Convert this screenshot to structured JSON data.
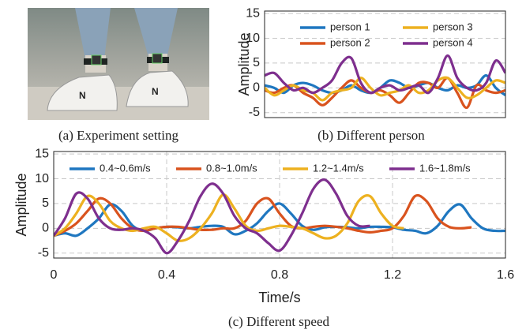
{
  "captions": [
    "(a) Experiment setting",
    "(b) Different person",
    "(c) Different speed"
  ],
  "chart_data": [
    {
      "type": "line",
      "ylabel": "Amplitude",
      "grid": true,
      "xlim": [
        0,
        1
      ],
      "ylim": [
        -6,
        15.5
      ],
      "yticks": [
        -5,
        0,
        5,
        10,
        15
      ],
      "x": [
        0,
        0.04,
        0.08,
        0.12,
        0.16,
        0.2,
        0.24,
        0.28,
        0.32,
        0.36,
        0.4,
        0.44,
        0.48,
        0.52,
        0.56,
        0.6,
        0.64,
        0.68,
        0.72,
        0.76,
        0.8,
        0.84,
        0.88,
        0.92,
        0.96,
        1
      ],
      "series": [
        {
          "name": "person 1",
          "color": "#1f77c0",
          "values": [
            0.5,
            0,
            -1,
            0.5,
            1,
            0.5,
            -0.5,
            -1,
            -0.5,
            0.5,
            -0.5,
            -1,
            0,
            1.5,
            1,
            0,
            0.5,
            1,
            0,
            -0.5,
            0.5,
            0,
            0.5,
            2.5,
            0,
            -1.5
          ]
        },
        {
          "name": "person 2",
          "color": "#d9531e",
          "values": [
            -0.5,
            -1,
            0,
            0.5,
            -1,
            -2,
            -3.5,
            -2,
            0,
            1.5,
            0,
            -1,
            -0.5,
            -1.5,
            -3,
            -1,
            1,
            1,
            0,
            2,
            -1,
            -4,
            0.5,
            -0.5,
            -1,
            -0.5
          ]
        },
        {
          "name": "person 3",
          "color": "#edb120",
          "values": [
            0,
            -1.5,
            -0.5,
            0.5,
            -0.5,
            -1,
            -2.5,
            -1,
            -0.5,
            0,
            2,
            0,
            -1.5,
            -1,
            -0.5,
            0.5,
            -1,
            -0.5,
            1.5,
            2,
            0,
            -2,
            -1.5,
            0,
            1.5,
            1
          ]
        },
        {
          "name": "person 4",
          "color": "#7e2f8e",
          "values": [
            2.5,
            3,
            1,
            -0.5,
            0,
            -1,
            0,
            1.5,
            5,
            6,
            1,
            -1,
            0,
            0.5,
            -0.5,
            0,
            0.5,
            -1,
            2,
            6.5,
            2,
            0,
            -0.5,
            1,
            5.5,
            3
          ]
        }
      ]
    },
    {
      "type": "line",
      "xlabel": "Time/s",
      "ylabel": "Amplitude",
      "grid": true,
      "xlim": [
        0,
        1.6
      ],
      "xticks": [
        0,
        0.4,
        0.8,
        1.2,
        1.6
      ],
      "ylim": [
        -6,
        15.5
      ],
      "yticks": [
        -5,
        0,
        5,
        10,
        15
      ],
      "series": [
        {
          "name": "0.4~0.6m/s",
          "color": "#1f77c0",
          "x": [
            0,
            0.04,
            0.08,
            0.12,
            0.16,
            0.2,
            0.24,
            0.28,
            0.32,
            0.36,
            0.4,
            0.44,
            0.48,
            0.52,
            0.56,
            0.6,
            0.64,
            0.68,
            0.72,
            0.76,
            0.8,
            0.84,
            0.88,
            0.92,
            0.96,
            1,
            1.04,
            1.08,
            1.12,
            1.16,
            1.2,
            1.24,
            1.28,
            1.32,
            1.36,
            1.4,
            1.44,
            1.48,
            1.52,
            1.56,
            1.6
          ],
          "values": [
            -1.5,
            -1,
            -1.5,
            0,
            2,
            4.8,
            3.5,
            0.5,
            -0.5,
            0,
            0.3,
            0.2,
            0,
            0.3,
            0.5,
            0.3,
            -1.2,
            -0.5,
            1,
            3.5,
            5,
            3,
            0.5,
            -0.3,
            0.2,
            0.3,
            0.2,
            0,
            0.3,
            0.3,
            0.2,
            -0.3,
            -0.5,
            -1,
            0.5,
            3.5,
            4.8,
            2,
            0,
            -0.5,
            -0.5
          ]
        },
        {
          "name": "0.8~1.0m/s",
          "color": "#d9531e",
          "x": [
            0,
            0.04,
            0.08,
            0.12,
            0.16,
            0.2,
            0.24,
            0.28,
            0.32,
            0.36,
            0.4,
            0.44,
            0.48,
            0.52,
            0.56,
            0.6,
            0.64,
            0.68,
            0.72,
            0.76,
            0.8,
            0.84,
            0.88,
            0.92,
            0.96,
            1,
            1.04,
            1.08,
            1.12,
            1.16,
            1.2,
            1.24,
            1.28,
            1.32,
            1.36,
            1.4,
            1.44,
            1.48
          ],
          "values": [
            -1.5,
            -0.5,
            1,
            3.5,
            6,
            5,
            2,
            0,
            -0.5,
            0,
            0.3,
            0.3,
            0,
            -0.3,
            -0.3,
            0,
            0,
            1.5,
            5,
            6,
            3,
            0.5,
            0,
            0.3,
            0.5,
            0.3,
            0,
            -0.5,
            -0.8,
            -0.5,
            0,
            2.5,
            6.5,
            5.5,
            2,
            0.3,
            0,
            0.2
          ]
        },
        {
          "name": "1.2~1.4m/s",
          "color": "#edb120",
          "x": [
            0,
            0.04,
            0.08,
            0.12,
            0.16,
            0.2,
            0.24,
            0.28,
            0.32,
            0.36,
            0.4,
            0.44,
            0.48,
            0.52,
            0.56,
            0.6,
            0.64,
            0.68,
            0.72,
            0.76,
            0.8,
            0.84,
            0.88,
            0.92,
            0.96,
            1,
            1.04,
            1.08,
            1.12,
            1.16,
            1.2,
            1.24
          ],
          "values": [
            -1.5,
            0,
            3,
            6.5,
            5,
            1.5,
            0,
            -0.5,
            0,
            0.3,
            -1,
            -2.5,
            -2,
            0,
            3,
            6.8,
            4,
            0.5,
            -0.5,
            0,
            0.5,
            0.3,
            0,
            -1,
            -2,
            -1.5,
            1,
            5.5,
            6.5,
            3,
            0.5,
            0
          ]
        },
        {
          "name": "1.6~1.8m/s",
          "color": "#7e2f8e",
          "x": [
            0,
            0.04,
            0.08,
            0.12,
            0.16,
            0.2,
            0.24,
            0.28,
            0.32,
            0.36,
            0.4,
            0.44,
            0.48,
            0.52,
            0.56,
            0.6,
            0.64,
            0.68,
            0.72,
            0.76,
            0.8,
            0.84,
            0.88,
            0.92,
            0.96,
            1,
            1.04,
            1.08,
            1.12
          ],
          "values": [
            -1.5,
            2,
            7,
            6,
            2,
            0,
            -0.3,
            0,
            -0.5,
            -2,
            -5,
            -2.5,
            1.5,
            6.5,
            9,
            7,
            2.5,
            0,
            -1,
            -3,
            -4.5,
            -1.5,
            3,
            8,
            9.8,
            7,
            2.5,
            0.5,
            0.5
          ]
        }
      ]
    }
  ]
}
